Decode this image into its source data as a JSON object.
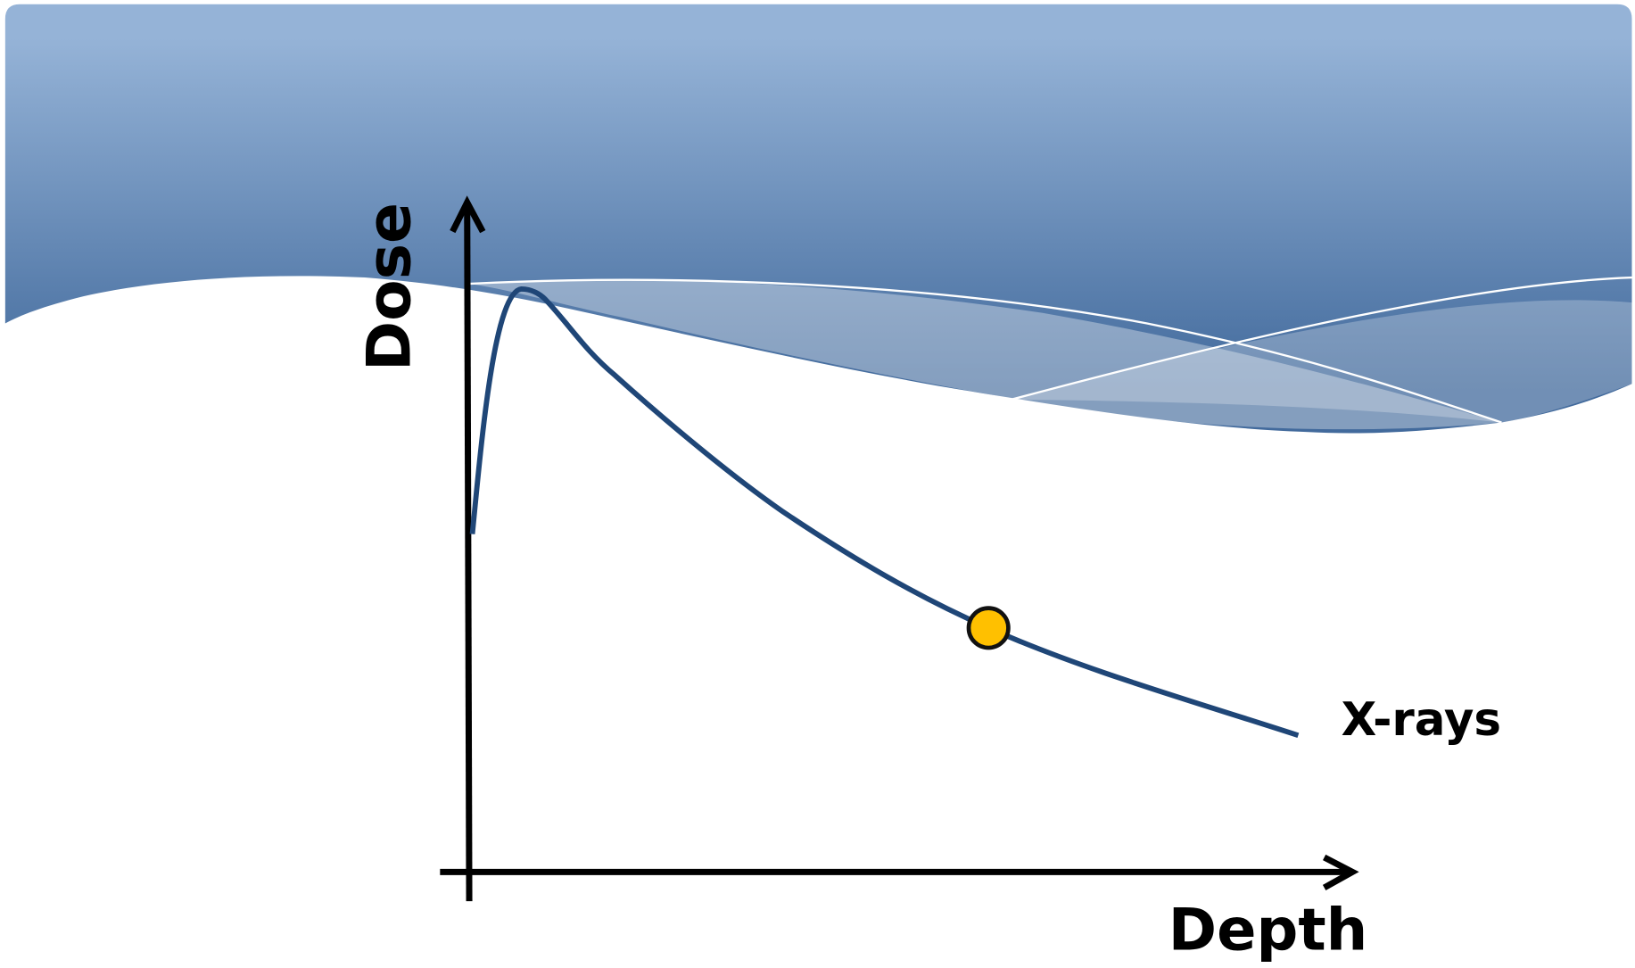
{
  "axes": {
    "y_label": "Dose",
    "x_label": "Depth"
  },
  "curve": {
    "label": "X-rays"
  }
}
